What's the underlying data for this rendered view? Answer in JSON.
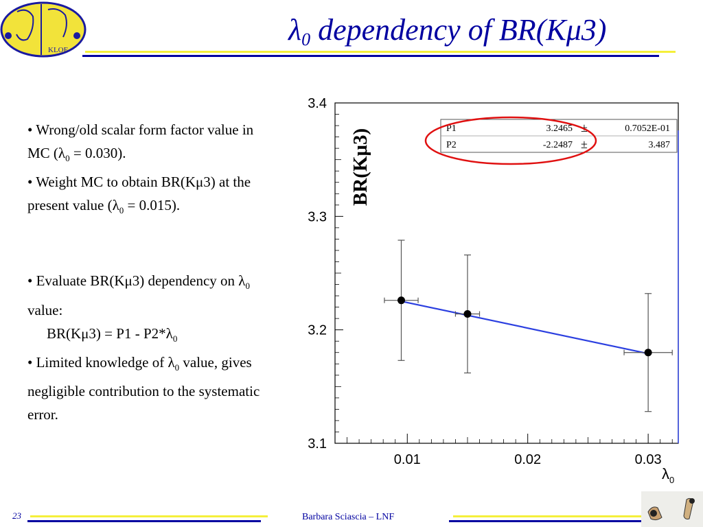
{
  "header": {
    "title_symbol": "λ",
    "title_sub": "0",
    "title_text": " dependency of BR(Kμ3)",
    "logo_text": "KLOE"
  },
  "bullets": {
    "b1_line": "• Wrong/old scalar form factor value in MC (λ",
    "b1_sub": "0",
    "b1_tail": " = 0.030).",
    "b2_line": "• Weight MC to obtain BR(Kμ3) at the present value (λ",
    "b2_sub": "0",
    "b2_tail": " = 0.015).",
    "b3_line": "• Evaluate BR(Kμ3) dependency on λ",
    "b3_sub": "0",
    "b3_tail": " value:",
    "b3_formula": "BR(Kμ3) = P1 - P2*λ",
    "b3_formula_sub": "0",
    "b4_line": "• Limited knowledge of λ",
    "b4_sub": "0",
    "b4_tail": " value, gives negligible contribution to the systematic error."
  },
  "chart_data": {
    "type": "scatter",
    "ylabel": "BR(Kμ3)",
    "xlabel_symbol": "λ",
    "xlabel_sub": "0",
    "xlim": [
      0.004,
      0.0325
    ],
    "ylim": [
      3.1,
      3.4
    ],
    "xticks": [
      "0.01",
      "0.02",
      "0.03"
    ],
    "xtick_values": [
      0.01,
      0.02,
      0.03
    ],
    "yticks": [
      "3.1",
      "3.2",
      "3.3",
      "3.4"
    ],
    "ytick_values": [
      3.1,
      3.2,
      3.3,
      3.4
    ],
    "points": [
      {
        "x": 0.0095,
        "y": 3.226,
        "xerr": 0.0014,
        "yerr": 0.053
      },
      {
        "x": 0.015,
        "y": 3.214,
        "xerr": 0.001,
        "yerr": 0.052
      },
      {
        "x": 0.03,
        "y": 3.18,
        "xerr": 0.002,
        "yerr": 0.052
      }
    ],
    "fit": {
      "p1": 3.2465,
      "p2": 2.2487,
      "x_range": [
        0.0095,
        0.03
      ]
    },
    "fit_table": [
      {
        "name": "P1",
        "value": "3.2465",
        "pm": "±",
        "error": "0.7052E-01"
      },
      {
        "name": "P2",
        "value": "-2.2487",
        "pm": "±",
        "error": "3.487"
      }
    ],
    "colors": {
      "fit_line": "#2b3fe0",
      "highlight": "#e01010",
      "points": "#000000"
    }
  },
  "footer": {
    "page_number": "23",
    "author": "Barbara Sciascia – LNF"
  }
}
